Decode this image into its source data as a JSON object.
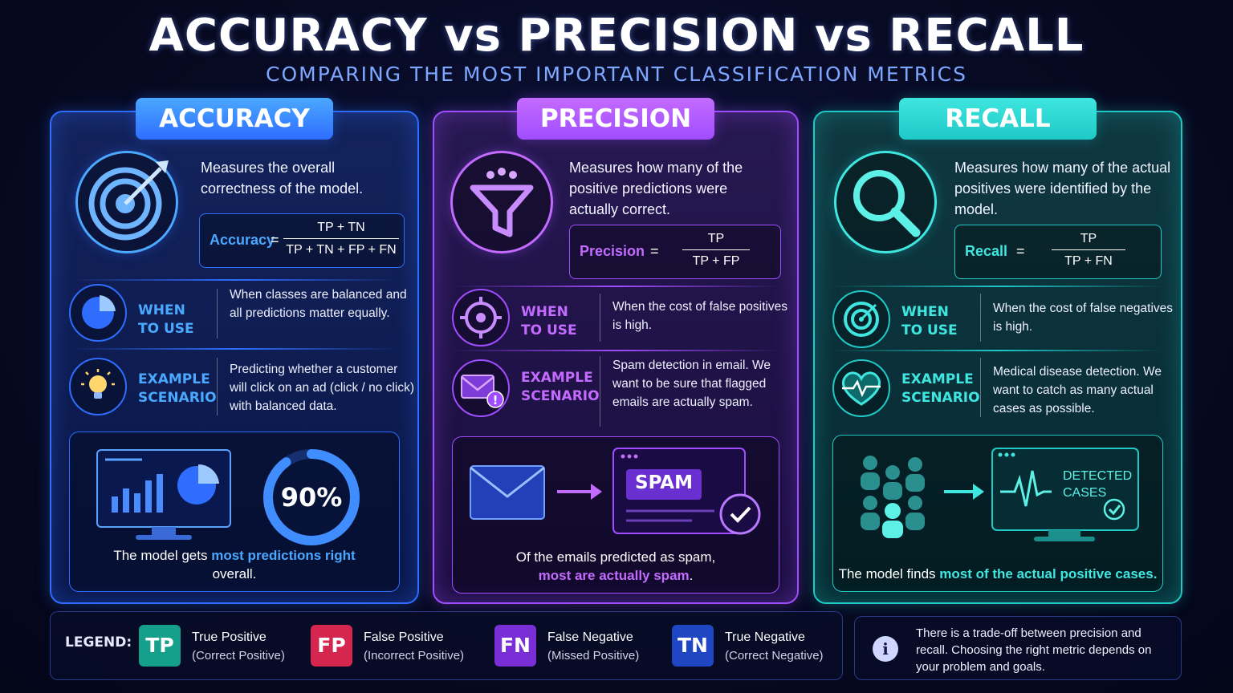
{
  "header": {
    "title": "ACCURACY vs PRECISION vs RECALL",
    "subtitle": "COMPARING THE MOST IMPORTANT CLASSIFICATION METRICS"
  },
  "panels": [
    {
      "name": "ACCURACY",
      "icon": "target-arrow-icon",
      "description": "Measures the overall correctness of the model.",
      "formula": {
        "label": "Accuracy",
        "numerator": "TP + TN",
        "denominator": "TP + TN + FP + FN"
      },
      "when_to_use": {
        "label_1": "WHEN",
        "label_2": "TO USE",
        "icon": "pie-chart-icon",
        "text": "When classes are balanced and all predictions matter equally."
      },
      "example": {
        "label_1": "EXAMPLE",
        "label_2": "SCENARIO",
        "icon": "lightbulb-icon",
        "text": "Predicting whether a customer will click on an ad (click / no click) with balanced data."
      },
      "illustration": {
        "value": "90%",
        "value_fraction": 0.9,
        "caption_pre": "The model gets ",
        "caption_hl": "most predictions right",
        "caption_post": " overall."
      }
    },
    {
      "name": "PRECISION",
      "icon": "funnel-icon",
      "description": "Measures how many of the positive predictions were actually correct.",
      "formula": {
        "label": "Precision",
        "numerator": "TP",
        "denominator": "TP + FP"
      },
      "when_to_use": {
        "label_1": "WHEN",
        "label_2": "TO USE",
        "icon": "crosshair-icon",
        "text": "When the cost of false positives is high."
      },
      "example": {
        "label_1": "EXAMPLE",
        "label_2": "SCENARIO",
        "icon": "mail-alert-icon",
        "text": "Spam detection in email. We want to be sure that flagged emails are actually spam."
      },
      "illustration": {
        "badge": "SPAM",
        "caption_pre": "Of the emails predicted as spam,",
        "caption_hl": "most are actually spam",
        "caption_post": "."
      }
    },
    {
      "name": "RECALL",
      "icon": "magnifier-icon",
      "description": "Measures how many of the actual positives were identified by the model.",
      "formula": {
        "label": "Recall",
        "numerator": "TP",
        "denominator": "TP + FN"
      },
      "when_to_use": {
        "label_1": "WHEN",
        "label_2": "TO USE",
        "icon": "target-icon",
        "text": "When the cost of false negatives is high."
      },
      "example": {
        "label_1": "EXAMPLE",
        "label_2": "SCENARIO",
        "icon": "heart-pulse-icon",
        "text": "Medical disease detection. We want to catch as many actual cases as possible."
      },
      "illustration": {
        "monitor_line_1": "DETECTED",
        "monitor_line_2": "CASES",
        "caption_pre": "The model finds ",
        "caption_hl": "most of the actual positive cases",
        "caption_post": "."
      }
    }
  ],
  "legend": {
    "title": "LEGEND:",
    "items": [
      {
        "abbr": "TP",
        "name": "True Positive",
        "sub": "(Correct Positive)",
        "color": "#14a08a"
      },
      {
        "abbr": "FP",
        "name": "False Positive",
        "sub": "(Incorrect Positive)",
        "color": "#d4264f"
      },
      {
        "abbr": "FN",
        "name": "False Negative",
        "sub": "(Missed Positive)",
        "color": "#7a2fd6"
      },
      {
        "abbr": "TN",
        "name": "True Negative",
        "sub": "(Correct Negative)",
        "color": "#1f47c4"
      }
    ]
  },
  "note": {
    "icon": "info-icon",
    "symbol": "i",
    "text": "There is a trade-off between precision and recall. Choosing the right metric depends on your problem and goals."
  },
  "colors": {
    "accuracy": "#2f6dff",
    "precision": "#a04dff",
    "recall": "#1fc9c6",
    "eq": "="
  }
}
